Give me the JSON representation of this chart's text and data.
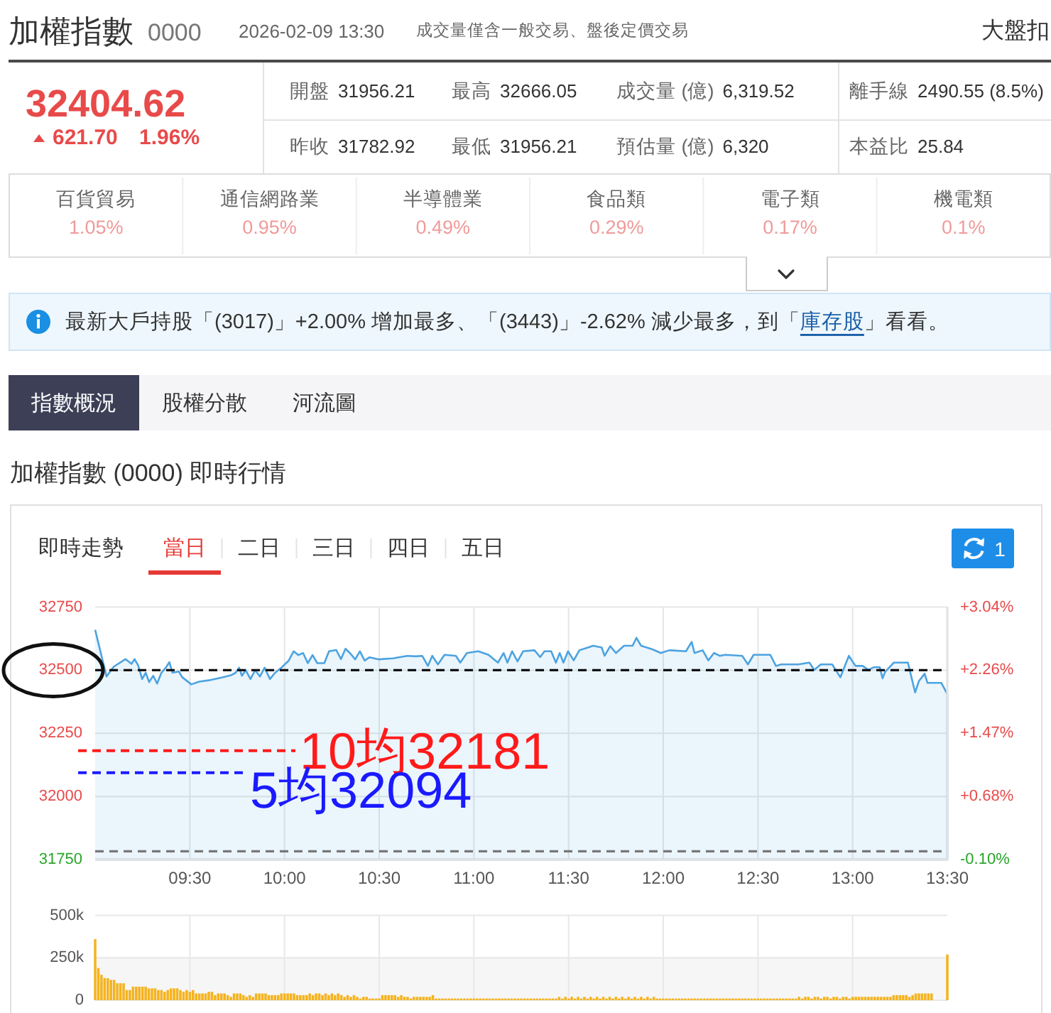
{
  "chart_data": [
    {
      "type": "other",
      "title": "加權指數",
      "subtitle": "0000",
      "annotations": [
        "2026-02-09 13:30",
        "成交量僅含一般交易、盤後定價交易",
        "大盤扣",
        "32404.62",
        "621.70",
        "1.96%",
        "開盤",
        "31956.21",
        "最高",
        "32666.05",
        "成交量 (億)",
        "6,319.52",
        "離手線",
        "2490.55 (8.5%)",
        "昨收",
        "31782.92",
        "最低",
        "31956.21",
        "預估量 (億)",
        "6,320",
        "本益比",
        "25.84"
      ]
    },
    {
      "type": "other",
      "annotations": [
        "百貨貿易",
        "1.05%",
        "通信網路業",
        "0.95%",
        "半導體業",
        "0.49%",
        "食品類",
        "0.29%",
        "電子類",
        "0.17%",
        "機電類",
        "0.1%"
      ]
    },
    {
      "type": "other",
      "annotations": [
        "最新大戶持股「(3017)」+2.00% 增加最多、「(3443)」-2.62% 減少最多，到「",
        "庫存股",
        "」看看。"
      ]
    },
    {
      "type": "other",
      "annotations": [
        "指數概況",
        "股權分散",
        "河流圖"
      ]
    },
    {
      "type": "area",
      "title": "加權指數 (0000) 即時行情",
      "subtitle": "即時走勢",
      "annotations": [
        "當日",
        "二日",
        "三日",
        "四日",
        "五日",
        "1"
      ],
      "x": [
        9,
        9.06,
        9.098,
        9.16,
        9.192,
        9.208,
        9.227,
        9.248,
        9.267,
        9.285,
        9.307,
        9.327,
        9.35,
        9.373,
        9.392,
        9.408,
        9.442,
        9.46,
        9.508,
        9.55,
        9.6,
        9.673,
        9.717,
        9.742,
        9.76,
        9.775,
        9.795,
        9.82,
        9.845,
        9.87,
        9.895,
        9.923,
        9.95,
        9.983,
        10.022,
        10.048,
        10.073,
        10.098,
        10.123,
        10.148,
        10.173,
        10.21,
        10.235,
        10.273,
        10.298,
        10.322,
        10.348,
        10.373,
        10.398,
        10.423,
        10.448,
        10.498,
        10.573,
        10.648,
        10.692,
        10.727,
        10.757,
        10.78,
        10.81,
        10.845,
        10.905,
        10.928,
        10.963,
        11.023,
        11.077,
        11.127,
        11.157,
        11.177,
        11.202,
        11.23,
        11.26,
        11.32,
        11.35,
        11.373,
        11.408,
        11.433,
        11.453,
        11.473,
        11.497,
        11.527,
        11.557,
        11.602,
        11.63,
        11.675,
        11.69,
        11.72,
        11.75,
        11.793,
        11.838,
        11.858,
        11.883,
        11.942,
        11.987,
        12.032,
        12.12,
        12.15,
        12.165,
        12.208,
        12.238,
        12.268,
        12.298,
        12.328,
        12.417,
        12.447,
        12.477,
        12.565,
        12.595,
        12.623,
        12.713,
        12.772,
        12.797,
        12.832,
        12.892,
        12.935,
        12.98,
        13.015,
        13.053,
        13.083,
        13.113,
        13.143,
        13.158,
        13.172,
        13.217,
        13.292,
        13.33,
        13.35,
        13.38,
        13.395,
        13.468,
        13.5
      ],
      "series": [
        {
          "color": "#4da3e0",
          "values": [
            32660,
            32475,
            32514,
            32544,
            32525,
            32544,
            32519,
            32465,
            32490,
            32453,
            32478,
            32447,
            32490,
            32510,
            32532,
            32490,
            32495,
            32472,
            32444,
            32455,
            32460,
            32472,
            32480,
            32490,
            32510,
            32478,
            32500,
            32465,
            32500,
            32475,
            32510,
            32465,
            32490,
            32510,
            32538,
            32575,
            32560,
            32568,
            32528,
            32560,
            32528,
            32528,
            32575,
            32580,
            32544,
            32585,
            32566,
            32543,
            32575,
            32538,
            32551,
            32543,
            32547,
            32557,
            32555,
            32557,
            32517,
            32557,
            32523,
            32561,
            32557,
            32530,
            32568,
            32575,
            32561,
            32530,
            32568,
            32530,
            32575,
            32535,
            32575,
            32579,
            32552,
            32575,
            32575,
            32530,
            32568,
            32530,
            32575,
            32539,
            32579,
            32590,
            32597,
            32590,
            32557,
            32595,
            32568,
            32597,
            32597,
            32628,
            32597,
            32583,
            32568,
            32579,
            32575,
            32612,
            32568,
            32579,
            32539,
            32568,
            32557,
            32561,
            32557,
            32523,
            32561,
            32561,
            32517,
            32523,
            32523,
            32530,
            32501,
            32523,
            32523,
            32472,
            32557,
            32517,
            32517,
            32501,
            32512,
            32512,
            32468,
            32494,
            32530,
            32530,
            32412,
            32457,
            32486,
            32450,
            32450,
            32405
          ]
        }
      ],
      "xlim": [
        9,
        13.5
      ],
      "xticks": [
        {
          "value": 9.5,
          "label": "09:30"
        },
        {
          "value": 10,
          "label": "10:00"
        },
        {
          "value": 10.5,
          "label": "10:30"
        },
        {
          "value": 11,
          "label": "11:00"
        },
        {
          "value": 11.5,
          "label": "11:30"
        },
        {
          "value": 12,
          "label": "12:00"
        },
        {
          "value": 12.5,
          "label": "12:30"
        },
        {
          "value": 13,
          "label": "13:00"
        },
        {
          "value": 13.5,
          "label": "13:30"
        }
      ],
      "ylim": [
        31750,
        32750
      ],
      "yticks": [
        31750,
        32000,
        32250,
        32500,
        32750
      ],
      "y2lim": [
        -0.1036,
        3.0428
      ],
      "y2ticks": [
        {
          "value": -0.1036,
          "label": "-0.10%"
        },
        {
          "value": 0.683,
          "label": "+0.68%"
        },
        {
          "value": 1.4696,
          "label": "+1.47%"
        },
        {
          "value": 2.2562,
          "label": "+2.26%"
        },
        {
          "value": 3.0428,
          "label": "+3.04%"
        }
      ],
      "grid": true,
      "ref_lines": [
        {
          "axis": "y",
          "value": 31782.92,
          "color": "#777777",
          "line_style": "dashed"
        },
        {
          "axis": "y",
          "value": 32500,
          "color": "#111111",
          "line_style": "dashed"
        },
        {
          "axis": "y",
          "value": 32181,
          "label": "10均32181",
          "color": "#ff1a1a",
          "line_style": "dashed"
        },
        {
          "axis": "y",
          "value": 32094,
          "label": "5均32094",
          "color": "#1a1aff",
          "line_style": "dashed"
        }
      ]
    },
    {
      "type": "bar",
      "color": "#f5b320",
      "x": [
        9,
        9.0167,
        9.0333,
        9.05,
        9.0667,
        9.0833,
        9.1,
        9.1167,
        9.1333,
        9.15,
        9.1667,
        9.1833,
        9.2,
        9.2167,
        9.2333,
        9.25,
        9.2667,
        9.2833,
        9.3,
        9.3167,
        9.3333,
        9.35,
        9.3667,
        9.3833,
        9.4,
        9.4167,
        9.4333,
        9.45,
        9.4667,
        9.4833,
        9.5,
        9.5167,
        9.5333,
        9.55,
        9.5667,
        9.5833,
        9.6,
        9.6167,
        9.6333,
        9.65,
        9.6667,
        9.6833,
        9.7,
        9.7167,
        9.7333,
        9.75,
        9.7667,
        9.7833,
        9.8,
        9.8167,
        9.8333,
        9.85,
        9.8667,
        9.8833,
        9.9,
        9.9167,
        9.9333,
        9.95,
        9.9667,
        9.9833,
        10,
        10.0167,
        10.0333,
        10.05,
        10.0667,
        10.0833,
        10.1,
        10.1167,
        10.1333,
        10.15,
        10.1667,
        10.1833,
        10.2,
        10.2167,
        10.2333,
        10.25,
        10.2667,
        10.2833,
        10.3,
        10.3167,
        10.3333,
        10.35,
        10.3667,
        10.3833,
        10.4,
        10.4167,
        10.4333,
        10.45,
        10.4667,
        10.4833,
        10.5,
        10.5167,
        10.5333,
        10.55,
        10.5667,
        10.5833,
        10.6,
        10.6167,
        10.6333,
        10.65,
        10.6667,
        10.6833,
        10.7,
        10.7167,
        10.7333,
        10.75,
        10.7667,
        10.7833,
        10.8,
        10.8167,
        10.8333,
        10.85,
        10.8667,
        10.8833,
        10.9,
        10.9167,
        10.9333,
        10.95,
        10.9667,
        10.9833,
        11,
        11.0167,
        11.0333,
        11.05,
        11.0667,
        11.0833,
        11.1,
        11.1167,
        11.1333,
        11.15,
        11.1667,
        11.1833,
        11.2,
        11.2167,
        11.2333,
        11.25,
        11.2667,
        11.2833,
        11.3,
        11.3167,
        11.3333,
        11.35,
        11.3667,
        11.3833,
        11.4,
        11.4167,
        11.4333,
        11.45,
        11.4667,
        11.4833,
        11.5,
        11.5167,
        11.5333,
        11.55,
        11.5667,
        11.5833,
        11.6,
        11.6167,
        11.6333,
        11.65,
        11.6667,
        11.6833,
        11.7,
        11.7167,
        11.7333,
        11.75,
        11.7667,
        11.7833,
        11.8,
        11.8167,
        11.8333,
        11.85,
        11.8667,
        11.8833,
        11.9,
        11.9167,
        11.9333,
        11.95,
        11.9667,
        11.9833,
        12,
        12.0167,
        12.0333,
        12.05,
        12.0667,
        12.0833,
        12.1,
        12.1167,
        12.1333,
        12.15,
        12.1667,
        12.1833,
        12.2,
        12.2167,
        12.2333,
        12.25,
        12.2667,
        12.2833,
        12.3,
        12.3167,
        12.3333,
        12.35,
        12.3667,
        12.3833,
        12.4,
        12.4167,
        12.4333,
        12.45,
        12.4667,
        12.4833,
        12.5,
        12.5167,
        12.5333,
        12.55,
        12.5667,
        12.5833,
        12.6,
        12.6167,
        12.6333,
        12.65,
        12.6667,
        12.6833,
        12.7,
        12.7167,
        12.7333,
        12.75,
        12.7667,
        12.7833,
        12.8,
        12.8167,
        12.8333,
        12.85,
        12.8667,
        12.8833,
        12.9,
        12.9167,
        12.9333,
        12.95,
        12.9667,
        12.9833,
        13,
        13.0167,
        13.0333,
        13.05,
        13.0667,
        13.0833,
        13.1,
        13.1167,
        13.1333,
        13.15,
        13.1667,
        13.1833,
        13.2,
        13.2167,
        13.2333,
        13.25,
        13.2667,
        13.2833,
        13.3,
        13.3167,
        13.3333,
        13.35,
        13.3667,
        13.3833,
        13.4,
        13.4167,
        13.5
      ],
      "values": [
        360000,
        190000,
        150000,
        130000,
        130000,
        120000,
        120000,
        100000,
        100000,
        100000,
        60000,
        60000,
        80000,
        80000,
        80000,
        80000,
        80000,
        70000,
        70000,
        70000,
        60000,
        60000,
        50000,
        60000,
        70000,
        70000,
        70000,
        60000,
        50000,
        60000,
        50000,
        60000,
        40000,
        40000,
        40000,
        40000,
        50000,
        50000,
        30000,
        40000,
        40000,
        40000,
        30000,
        20000,
        40000,
        40000,
        40000,
        30000,
        20000,
        30000,
        20000,
        40000,
        40000,
        40000,
        40000,
        30000,
        30000,
        30000,
        30000,
        40000,
        40000,
        40000,
        40000,
        40000,
        30000,
        30000,
        30000,
        30000,
        40000,
        30000,
        40000,
        40000,
        30000,
        40000,
        30000,
        40000,
        30000,
        40000,
        30000,
        20000,
        30000,
        20000,
        30000,
        20000,
        10000,
        20000,
        20000,
        10000,
        10000,
        10000,
        10000,
        30000,
        30000,
        30000,
        30000,
        30000,
        20000,
        30000,
        20000,
        20000,
        10000,
        20000,
        20000,
        20000,
        20000,
        20000,
        20000,
        30000,
        10000,
        10000,
        10000,
        10000,
        10000,
        10000,
        10000,
        10000,
        10000,
        10000,
        10000,
        10000,
        10000,
        10000,
        10000,
        10000,
        10000,
        10000,
        10000,
        10000,
        10000,
        10000,
        10000,
        10000,
        10000,
        10000,
        10000,
        10000,
        10000,
        10000,
        10000,
        10000,
        10000,
        10000,
        10000,
        10000,
        10000,
        10000,
        10000,
        20000,
        10000,
        20000,
        10000,
        20000,
        10000,
        20000,
        10000,
        20000,
        10000,
        20000,
        10000,
        20000,
        10000,
        20000,
        10000,
        20000,
        10000,
        20000,
        10000,
        20000,
        10000,
        20000,
        10000,
        20000,
        10000,
        20000,
        10000,
        20000,
        10000,
        20000,
        10000,
        10000,
        10000,
        10000,
        10000,
        10000,
        10000,
        10000,
        10000,
        10000,
        10000,
        10000,
        10000,
        10000,
        10000,
        10000,
        10000,
        10000,
        10000,
        10000,
        10000,
        10000,
        10000,
        10000,
        10000,
        10000,
        10000,
        10000,
        10000,
        10000,
        10000,
        10000,
        10000,
        10000,
        10000,
        10000,
        10000,
        10000,
        10000,
        10000,
        10000,
        10000,
        10000,
        10000,
        10000,
        20000,
        10000,
        20000,
        20000,
        10000,
        20000,
        20000,
        10000,
        20000,
        20000,
        10000,
        20000,
        20000,
        10000,
        20000,
        20000,
        10000,
        20000,
        20000,
        20000,
        20000,
        20000,
        20000,
        20000,
        20000,
        20000,
        20000,
        20000,
        20000,
        20000,
        30000,
        30000,
        30000,
        30000,
        30000,
        20000,
        30000,
        40000,
        40000,
        40000,
        40000,
        40000,
        40000,
        270000
      ],
      "xlim": [
        9,
        13.5
      ],
      "xticks": [
        {
          "value": 9.5,
          "label": null
        },
        {
          "value": 10,
          "label": null
        },
        {
          "value": 10.5,
          "label": null
        },
        {
          "value": 11,
          "label": null
        },
        {
          "value": 11.5,
          "label": null
        },
        {
          "value": 12,
          "label": null
        },
        {
          "value": 12.5,
          "label": null
        },
        {
          "value": 13,
          "label": null
        }
      ],
      "ylim": [
        0,
        500000
      ],
      "yticks": [
        0,
        {
          "value": 250000,
          "label": "250k"
        },
        {
          "value": 500000,
          "label": "500k"
        }
      ],
      "tick_labels": "y",
      "grid": true,
      "bands": [
        {
          "axis": "y",
          "from": 0,
          "to": 250000,
          "color": "#f6f6f6"
        }
      ]
    }
  ]
}
